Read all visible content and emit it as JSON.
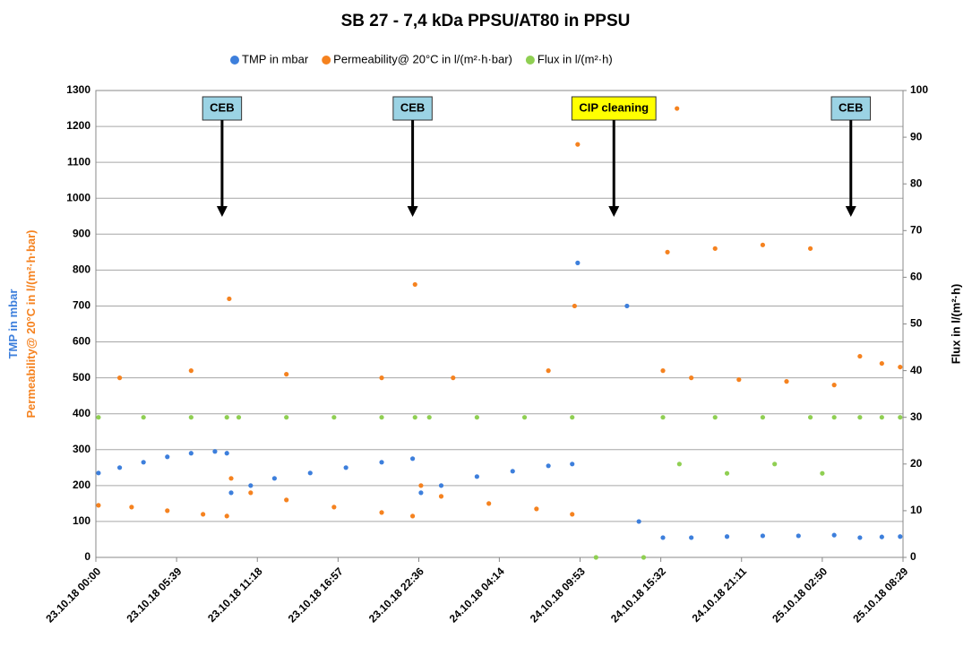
{
  "chart_data": {
    "type": "scatter",
    "title": "SB 27 - 7,4 kDa PPSU/AT80 in PPSU",
    "ylabel_parts": [
      "TMP in mbar",
      "Permeability@ 20°C in l/(m²·h·bar)"
    ],
    "y2label": "Flux in l/(m²·h)",
    "xlim": [
      0,
      3389
    ],
    "xticks": [
      {
        "value": 0,
        "label": "23.10.18 00:00"
      },
      {
        "value": 339,
        "label": "23.10.18 05:39"
      },
      {
        "value": 678,
        "label": "23.10.18 11:18"
      },
      {
        "value": 1017,
        "label": "23.10.18 16:57"
      },
      {
        "value": 1356,
        "label": "23.10.18 22:36"
      },
      {
        "value": 1694,
        "label": "24.10.18 04:14"
      },
      {
        "value": 2033,
        "label": "24.10.18 09:53"
      },
      {
        "value": 2372,
        "label": "24.10.18 15:32"
      },
      {
        "value": 2711,
        "label": "24.10.18 21:11"
      },
      {
        "value": 3050,
        "label": "25.10.18 02:50"
      },
      {
        "value": 3389,
        "label": "25.10.18 08:29"
      }
    ],
    "ylim": [
      0,
      1300
    ],
    "yticks": [
      0,
      100,
      200,
      300,
      400,
      500,
      600,
      700,
      800,
      900,
      1000,
      1100,
      1200,
      1300
    ],
    "y2lim": [
      0,
      100
    ],
    "y2ticks": [
      0,
      10,
      20,
      30,
      40,
      50,
      60,
      70,
      80,
      90,
      100
    ],
    "grid": true,
    "legend": "top",
    "series": [
      {
        "name": "TMP in mbar",
        "color": "#3d7fdc",
        "x": [
          11,
          100,
          200,
          300,
          400,
          500,
          550,
          568,
          650,
          750,
          900,
          1050,
          1200,
          1330,
          1365,
          1450,
          1600,
          1750,
          1900,
          2000,
          2023,
          2230,
          2280,
          2381,
          2500,
          2650,
          2800,
          2950,
          3100,
          3208,
          3300,
          3377
        ],
        "values": [
          235,
          250,
          265,
          280,
          290,
          295,
          290,
          180,
          200,
          220,
          235,
          250,
          265,
          275,
          180,
          200,
          225,
          240,
          255,
          260,
          820,
          700,
          100,
          55,
          55,
          58,
          60,
          60,
          62,
          55,
          57,
          58
        ]
      },
      {
        "name": "Permeability@ 20°C in l/(m²·h·bar)",
        "color": "#f5821f",
        "x": [
          11,
          150,
          300,
          450,
          550,
          568,
          650,
          800,
          1000,
          1200,
          1330,
          1365,
          1450,
          1650,
          1850,
          2000,
          2023,
          2381,
          2500,
          2700,
          2900,
          3100,
          2400,
          2600,
          2800,
          3000,
          3208,
          3300,
          3377,
          560,
          1340,
          2010,
          2440,
          100,
          400,
          800,
          1200,
          1500,
          1900
        ],
        "values": [
          145,
          140,
          130,
          120,
          115,
          220,
          180,
          160,
          140,
          125,
          115,
          200,
          170,
          150,
          135,
          120,
          1150,
          520,
          500,
          495,
          490,
          480,
          850,
          860,
          870,
          860,
          560,
          540,
          530,
          720,
          760,
          700,
          1250,
          500,
          520,
          510,
          500,
          500,
          520
        ]
      },
      {
        "name": "Flux in l/(m²·h)",
        "color": "#8fcf52",
        "axis": "y2",
        "x": [
          11,
          200,
          400,
          550,
          600,
          800,
          1000,
          1200,
          1340,
          1400,
          1600,
          1800,
          2000,
          2100,
          2300,
          2381,
          2600,
          2800,
          3000,
          3100,
          3208,
          3300,
          3377,
          2450,
          2650,
          2850,
          3050
        ],
        "values": [
          30,
          30,
          30,
          30,
          30,
          30,
          30,
          30,
          30,
          30,
          30,
          30,
          30,
          0,
          0,
          30,
          30,
          30,
          30,
          30,
          30,
          30,
          30,
          20,
          18,
          20,
          18
        ]
      }
    ],
    "annotations": [
      {
        "text": "CEB",
        "x": 530
      },
      {
        "text": "CEB",
        "x": 1330
      },
      {
        "text": "CIP cleaning",
        "x": 2175
      },
      {
        "text": "CEB",
        "x": 3170
      }
    ]
  }
}
